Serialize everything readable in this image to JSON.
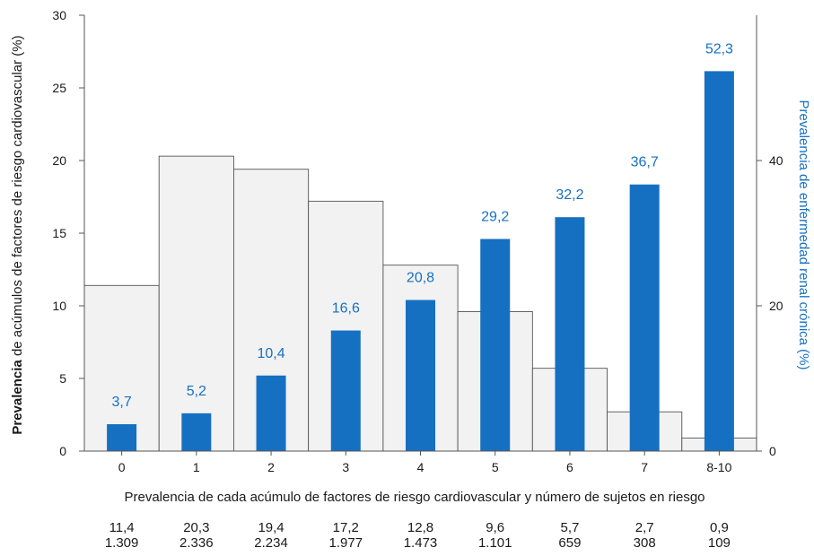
{
  "chart_data": {
    "type": "bar",
    "categories": [
      "0",
      "1",
      "2",
      "3",
      "4",
      "5",
      "6",
      "7",
      "8-10"
    ],
    "xlabel": "Prevalencia de cada acúmulo de factores de riesgo cardiovascular y número de sujetos en riesgo",
    "ylabel": {
      "prefix": "Prevalencia",
      "rest": " de acúmulos de factores de riesgo cardiovascular (%)"
    },
    "ylabel_right": "Prevalencia de enfermedad renal crónica (%)",
    "ylim": [
      0,
      30
    ],
    "ylim_right": [
      0,
      60
    ],
    "yticks": [
      "0",
      "5",
      "10",
      "15",
      "20",
      "25",
      "30"
    ],
    "yticks_right": [
      "0",
      "20",
      "40"
    ],
    "series": [
      {
        "axis": "left",
        "values": [
          11.4,
          20.3,
          19.4,
          17.2,
          12.8,
          9.6,
          5.7,
          2.7,
          0.9
        ]
      },
      {
        "axis": "right",
        "values": [
          3.7,
          5.2,
          10.4,
          16.6,
          20.8,
          29.2,
          32.2,
          36.7,
          52.3
        ],
        "labels": [
          "3,7",
          "5,2",
          "10,4",
          "16,6",
          "20,8",
          "29,2",
          "32,2",
          "36,7",
          "52,3"
        ]
      }
    ],
    "table": {
      "prevalence": [
        "11,4",
        "20,3",
        "19,4",
        "17,2",
        "12,8",
        "9,6",
        "5,7",
        "2,7",
        "0,9"
      ],
      "subjects": [
        "1.309",
        "2.336",
        "2.234",
        "1.977",
        "1.473",
        "1.101",
        "659",
        "308",
        "109"
      ]
    },
    "colors": {
      "grey_bar_fill": "#f2f2f2",
      "grey_bar_stroke": "#555555",
      "blue_bar": "#1670c2",
      "blue_text": "#1670c2",
      "axis": "#555555",
      "text": "#1a1a1a"
    }
  }
}
